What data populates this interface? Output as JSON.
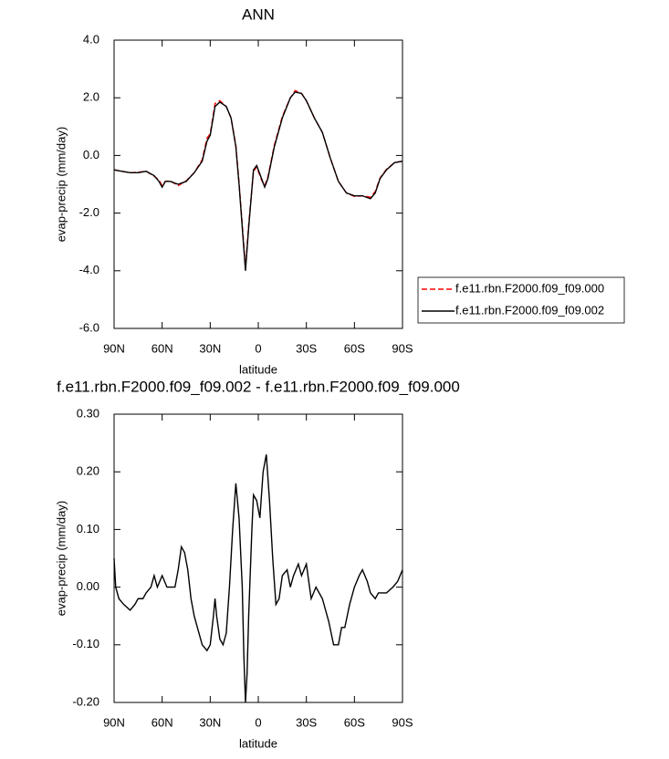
{
  "chart_data": [
    {
      "type": "line",
      "title": "ANN",
      "xlabel": "latitude",
      "ylabel": "evap-precip (mm/day)",
      "x": [
        90,
        85,
        80,
        75,
        70,
        65,
        62,
        60,
        58,
        55,
        50,
        45,
        40,
        35,
        32,
        30,
        27,
        24,
        20,
        17,
        14,
        12,
        10,
        8,
        6,
        3,
        1,
        -2,
        -4,
        -6,
        -10,
        -15,
        -20,
        -23,
        -27,
        -30,
        -35,
        -40,
        -45,
        -50,
        -55,
        -60,
        -65,
        -70,
        -73,
        -76,
        -80,
        -85,
        -90
      ],
      "xlim": [
        90,
        -90
      ],
      "xticks": [
        {
          "value": 90,
          "label": "90N"
        },
        {
          "value": 60,
          "label": "60N"
        },
        {
          "value": 30,
          "label": "30N"
        },
        0,
        {
          "value": -30,
          "label": "30S"
        },
        {
          "value": -60,
          "label": "60S"
        },
        {
          "value": -90,
          "label": "90S"
        }
      ],
      "ylim": [
        -6,
        4
      ],
      "yticks": [
        {
          "value": -6,
          "label": "-6.0"
        },
        {
          "value": -4,
          "label": "-4.0"
        },
        {
          "value": -2,
          "label": "-2.0"
        },
        {
          "value": 0,
          "label": "0.0"
        },
        {
          "value": 2,
          "label": "2.0"
        },
        {
          "value": 4,
          "label": "4.0"
        }
      ],
      "legend": "right",
      "series": [
        {
          "name": "f.e11.rbn.F2000.f09_f09.000",
          "color": "#ff0000",
          "dashed": true,
          "values": [
            -0.5,
            -0.55,
            -0.6,
            -0.58,
            -0.55,
            -0.72,
            -0.85,
            -1.05,
            -0.9,
            -0.88,
            -1.05,
            -0.88,
            -0.6,
            -0.15,
            0.6,
            0.75,
            1.8,
            1.9,
            1.7,
            1.3,
            0.35,
            -0.95,
            -2.4,
            -3.9,
            -2.4,
            -0.55,
            -0.4,
            -0.85,
            -1.05,
            -0.75,
            0.35,
            1.35,
            2.0,
            2.25,
            2.15,
            1.9,
            1.3,
            0.8,
            -0.1,
            -0.9,
            -1.3,
            -1.42,
            -1.4,
            -1.45,
            -1.25,
            -0.78,
            -0.48,
            -0.25,
            -0.2
          ]
        },
        {
          "name": "f.e11.rbn.F2000.f09_f09.002",
          "color": "#000000",
          "dashed": false,
          "values": [
            -0.5,
            -0.55,
            -0.6,
            -0.6,
            -0.55,
            -0.7,
            -0.9,
            -1.1,
            -0.9,
            -0.9,
            -1.0,
            -0.9,
            -0.6,
            -0.2,
            0.5,
            0.7,
            1.7,
            1.85,
            1.7,
            1.3,
            0.3,
            -1.0,
            -2.5,
            -4.0,
            -2.5,
            -0.5,
            -0.35,
            -0.8,
            -1.1,
            -0.8,
            0.3,
            1.3,
            2.0,
            2.2,
            2.15,
            1.9,
            1.3,
            0.8,
            -0.1,
            -0.9,
            -1.3,
            -1.4,
            -1.4,
            -1.5,
            -1.3,
            -0.8,
            -0.5,
            -0.25,
            -0.2
          ]
        }
      ]
    },
    {
      "type": "line",
      "title": "f.e11.rbn.F2000.f09_f09.002 - f.e11.rbn.F2000.f09_f09.000",
      "xlabel": "latitude",
      "ylabel": "evap-precip (mm/day)",
      "x": [
        90,
        89,
        87,
        84,
        80,
        77,
        75,
        72,
        70,
        67,
        65,
        63,
        60,
        57,
        52,
        50,
        48,
        46,
        44,
        42,
        40,
        37,
        35,
        32,
        30,
        28,
        27,
        26,
        24,
        22,
        20,
        18,
        16,
        14,
        12,
        10,
        9,
        8,
        7,
        6,
        4,
        3,
        1,
        -1,
        -3,
        -5,
        -7,
        -9,
        -11,
        -13,
        -15,
        -18,
        -20,
        -22,
        -25,
        -27,
        -30,
        -33,
        -36,
        -40,
        -44,
        -47,
        -50,
        -52,
        -54,
        -57,
        -60,
        -63,
        -65,
        -68,
        -70,
        -73,
        -75,
        -80,
        -84,
        -87,
        -90
      ],
      "xlim": [
        90,
        -90
      ],
      "xticks": [
        {
          "value": 90,
          "label": "90N"
        },
        {
          "value": 60,
          "label": "60N"
        },
        {
          "value": 30,
          "label": "30N"
        },
        0,
        {
          "value": -30,
          "label": "30S"
        },
        {
          "value": -60,
          "label": "60S"
        },
        {
          "value": -90,
          "label": "90S"
        }
      ],
      "ylim": [
        -0.2,
        0.3
      ],
      "yticks": [
        {
          "value": -0.2,
          "label": "-0.20"
        },
        {
          "value": -0.1,
          "label": "-0.10"
        },
        {
          "value": 0,
          "label": "0.00"
        },
        {
          "value": 0.1,
          "label": "0.10"
        },
        {
          "value": 0.2,
          "label": "0.20"
        },
        {
          "value": 0.3,
          "label": "0.30"
        }
      ],
      "series": [
        {
          "color": "#000000",
          "dashed": false,
          "values": [
            0.05,
            0.0,
            -0.02,
            -0.03,
            -0.04,
            -0.03,
            -0.02,
            -0.02,
            -0.01,
            0.0,
            0.02,
            0.0,
            0.02,
            0.0,
            0.0,
            0.03,
            0.07,
            0.06,
            0.03,
            -0.02,
            -0.05,
            -0.08,
            -0.1,
            -0.11,
            -0.1,
            -0.05,
            -0.02,
            -0.05,
            -0.09,
            -0.1,
            -0.08,
            0.0,
            0.1,
            0.18,
            0.12,
            0.0,
            -0.12,
            -0.2,
            -0.15,
            -0.05,
            0.1,
            0.16,
            0.15,
            0.12,
            0.2,
            0.23,
            0.15,
            0.05,
            -0.03,
            -0.02,
            0.02,
            0.03,
            0.0,
            0.02,
            0.04,
            0.02,
            0.04,
            -0.02,
            0.0,
            -0.02,
            -0.06,
            -0.1,
            -0.1,
            -0.07,
            -0.07,
            -0.03,
            0.0,
            0.02,
            0.03,
            0.01,
            -0.01,
            -0.02,
            -0.01,
            -0.01,
            0.0,
            0.01,
            0.03
          ]
        }
      ]
    }
  ]
}
